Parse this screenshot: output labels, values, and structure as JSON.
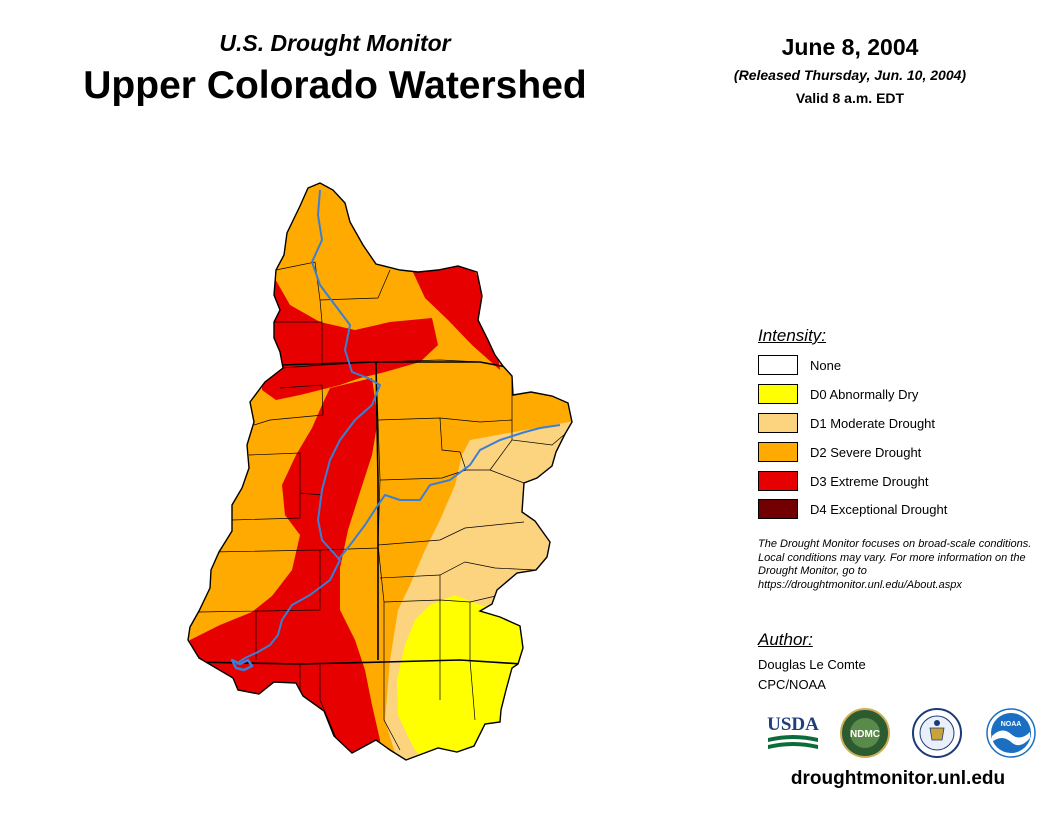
{
  "header": {
    "subtitle": "U.S. Drought Monitor",
    "title": "Upper Colorado Watershed",
    "date": "June 8, 2004",
    "released": "(Released Thursday, Jun. 10, 2004)",
    "valid": "Valid 8 a.m. EDT"
  },
  "legend": {
    "heading": "Intensity:",
    "items": [
      {
        "label": "None",
        "color": "#ffffff"
      },
      {
        "label": "D0 Abnormally Dry",
        "color": "#ffff00"
      },
      {
        "label": "D1 Moderate Drought",
        "color": "#fcd37f"
      },
      {
        "label": "D2 Severe Drought",
        "color": "#ffaa00"
      },
      {
        "label": "D3 Extreme Drought",
        "color": "#e60000"
      },
      {
        "label": "D4 Exceptional Drought",
        "color": "#730000"
      }
    ]
  },
  "note": "The Drought Monitor focuses on broad-scale conditions. Local conditions may vary. For more information on the Drought Monitor, go to https://droughtmonitor.unl.edu/About.aspx",
  "author": {
    "heading": "Author:",
    "name": "Douglas Le Comte",
    "org": "CPC/NOAA"
  },
  "logos": {
    "usda": "USDA",
    "ndmc": "NDMC",
    "noaa": "NOAA"
  },
  "website": "droughtmonitor.unl.edu",
  "colors": {
    "river": "#3a7fd5",
    "boundary": "#000000"
  }
}
